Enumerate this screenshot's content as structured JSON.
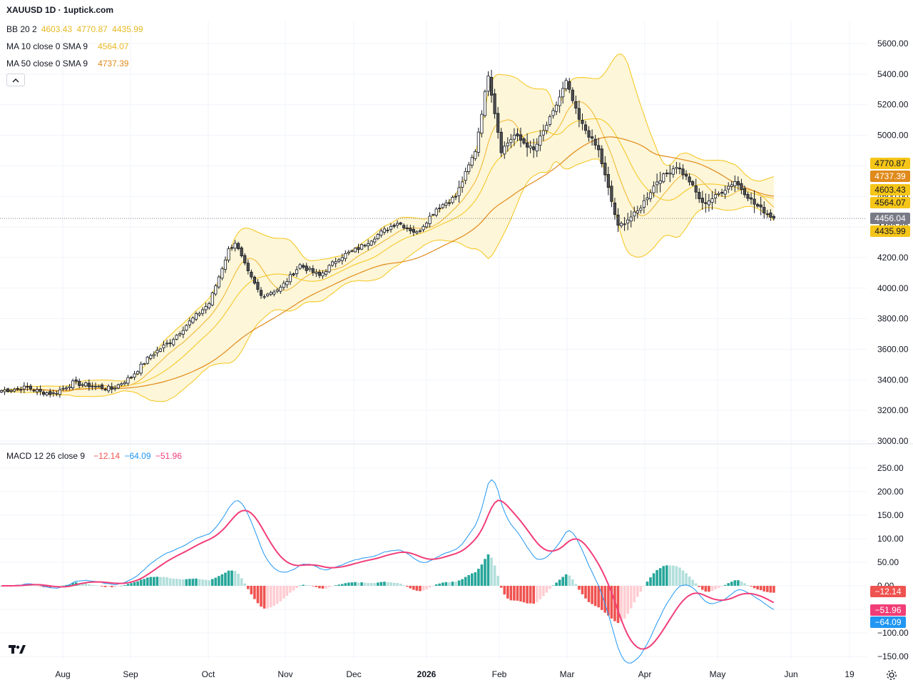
{
  "header": {
    "title": "XAUUSD 1D · 1uptick.com",
    "bb": {
      "label": "BB 20 2",
      "basis": "4603.43",
      "upper": "4770.87",
      "lower": "4435.99"
    },
    "ma10": {
      "label": "MA 10 close 0 SMA 9",
      "value": "4564.07"
    },
    "ma50": {
      "label": "MA 50 close 0 SMA 9",
      "value": "4737.39"
    },
    "macd": {
      "label": "MACD 12 26 close 9",
      "hist": "−12.14",
      "macd": "−64.09",
      "signal": "−51.96"
    }
  },
  "colors": {
    "up": "#ffffff",
    "down": "#505050",
    "wick": "#131722",
    "bb_band": "#f5c518",
    "bb_fill": "#fdf6d8",
    "ma10": "#f0b429",
    "ma50": "#e08a1a",
    "macd_line": "#2196f3",
    "signal_line": "#f23e78",
    "hist_pos_strong": "#26a69a",
    "hist_pos_weak": "#b2dfdb",
    "hist_neg_strong": "#ef5350",
    "hist_neg_weak": "#ffcdd2"
  },
  "chart_data": {
    "type": "candlestick",
    "price_axis": {
      "min": 3000,
      "max": 5600,
      "ticks": [
        "5600.00",
        "5400.00",
        "5200.00",
        "5000.00",
        "4800.00",
        "4600.00",
        "4400.00",
        "4200.00",
        "4000.00",
        "3800.00",
        "3600.00",
        "3400.00",
        "3200.00",
        "3000.00"
      ]
    },
    "macd_axis": {
      "min": -150,
      "max": 250,
      "ticks": [
        "250.00",
        "200.00",
        "150.00",
        "100.00",
        "50.00",
        "0.00",
        "−50.00",
        "−100.00",
        "−150.00"
      ]
    },
    "time_axis": {
      "labels": [
        "Aug",
        "Sep",
        "Oct",
        "Nov",
        "Dec",
        "2026",
        "Feb",
        "Mar",
        "Apr",
        "May",
        "Jun",
        "19"
      ]
    },
    "price_tags": [
      {
        "value": "4770.87",
        "color": "#f5c518",
        "text_color": "#131722"
      },
      {
        "value": "4737.39",
        "color": "#e08a1a",
        "text_color": "#ffffff"
      },
      {
        "value": "4603.43",
        "color": "#f5c518",
        "text_color": "#131722"
      },
      {
        "value": "4564.07",
        "color": "#f5c518",
        "text_color": "#131722"
      },
      {
        "value": "4456.04",
        "color": "#787b86",
        "text_color": "#ffffff"
      },
      {
        "value": "4435.99",
        "color": "#f5c518",
        "text_color": "#131722"
      }
    ],
    "macd_tags": [
      {
        "value": "−12.14",
        "color": "#ef5350"
      },
      {
        "value": "−51.96",
        "color": "#f23e78"
      },
      {
        "value": "−64.09",
        "color": "#2196f3"
      }
    ],
    "close_anchors": [
      [
        0,
        3330
      ],
      [
        8,
        3350
      ],
      [
        12,
        3320
      ],
      [
        16,
        3310
      ],
      [
        22,
        3380
      ],
      [
        28,
        3360
      ],
      [
        34,
        3340
      ],
      [
        40,
        3420
      ],
      [
        46,
        3560
      ],
      [
        52,
        3650
      ],
      [
        58,
        3780
      ],
      [
        64,
        3900
      ],
      [
        70,
        4250
      ],
      [
        72,
        4300
      ],
      [
        76,
        4100
      ],
      [
        80,
        3950
      ],
      [
        86,
        4000
      ],
      [
        92,
        4150
      ],
      [
        98,
        4080
      ],
      [
        104,
        4200
      ],
      [
        110,
        4260
      ],
      [
        116,
        4350
      ],
      [
        122,
        4430
      ],
      [
        128,
        4360
      ],
      [
        134,
        4520
      ],
      [
        140,
        4600
      ],
      [
        146,
        4900
      ],
      [
        150,
        5400
      ],
      [
        154,
        4900
      ],
      [
        158,
        5000
      ],
      [
        164,
        4900
      ],
      [
        170,
        5150
      ],
      [
        174,
        5350
      ],
      [
        178,
        5100
      ],
      [
        184,
        4900
      ],
      [
        190,
        4400
      ],
      [
        196,
        4500
      ],
      [
        202,
        4700
      ],
      [
        208,
        4800
      ],
      [
        212,
        4700
      ],
      [
        216,
        4550
      ],
      [
        220,
        4600
      ],
      [
        226,
        4700
      ],
      [
        232,
        4550
      ],
      [
        238,
        4456
      ]
    ],
    "current_close": 4456.04
  }
}
